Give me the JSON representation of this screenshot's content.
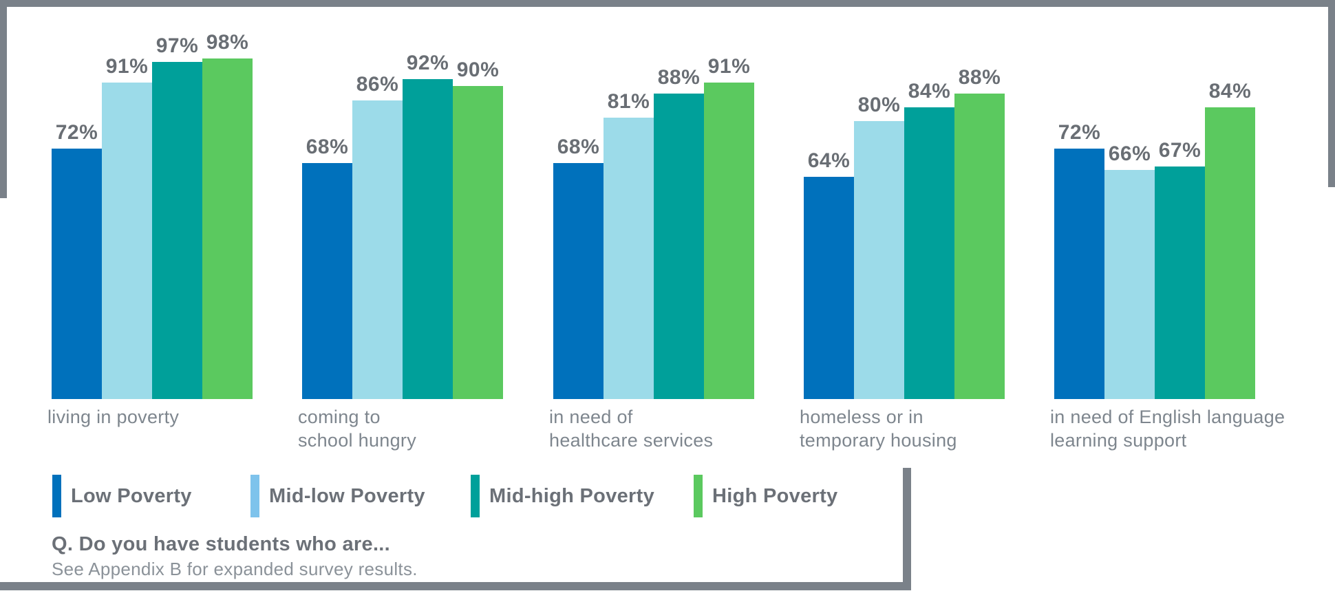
{
  "chart_data": {
    "type": "bar",
    "title": "",
    "categories": [
      "living in poverty",
      "coming to\nschool hungry",
      "in need of\nhealthcare services",
      "homeless or in\ntemporary housing",
      "in need of English language\nlearning support"
    ],
    "series": [
      {
        "name": "Low Poverty",
        "color": "#0071BC",
        "legend_color": "#0071BC",
        "values": [
          72,
          68,
          68,
          64,
          72
        ]
      },
      {
        "name": "Mid-low Poverty",
        "color": "#9CDBE9",
        "legend_color": "#7EC3EC",
        "values": [
          91,
          86,
          81,
          80,
          66
        ]
      },
      {
        "name": "Mid-high Poverty",
        "color": "#00A09A",
        "legend_color": "#00A09A",
        "values": [
          97,
          92,
          88,
          84,
          67
        ]
      },
      {
        "name": "High Poverty",
        "color": "#5BC95F",
        "legend_color": "#5BC95F",
        "values": [
          98,
          90,
          91,
          88,
          84
        ]
      }
    ],
    "value_suffix": "%",
    "xlabel": "",
    "ylabel": "",
    "ylim": [
      0,
      100
    ],
    "grid": false,
    "data_labels": true,
    "legend_position": "bottom-left"
  },
  "footer": {
    "question": "Q. Do you have students who are...",
    "note": "See Appendix B for expanded survey results."
  },
  "colors": {
    "frame": "#7A8189",
    "value_label": "#696E74",
    "category_label": "#7E868E",
    "legend_label": "#6B7077",
    "question": "#6B7077",
    "note": "#8B9299"
  }
}
